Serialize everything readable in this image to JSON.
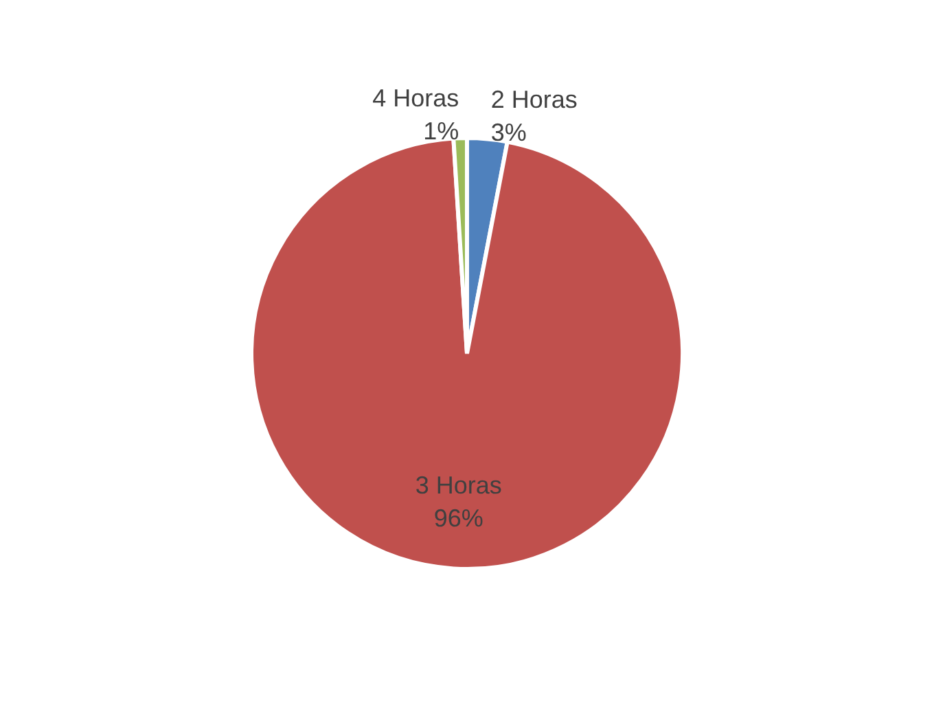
{
  "chart_data": {
    "type": "pie",
    "categories": [
      "2 Horas",
      "3 Horas",
      "4 Horas"
    ],
    "values": [
      3,
      96,
      1
    ],
    "colors": [
      "#4f81bd",
      "#c0504d",
      "#9bbb59"
    ],
    "value_labels": [
      "3%",
      "96%",
      "1%"
    ],
    "legend": false
  }
}
